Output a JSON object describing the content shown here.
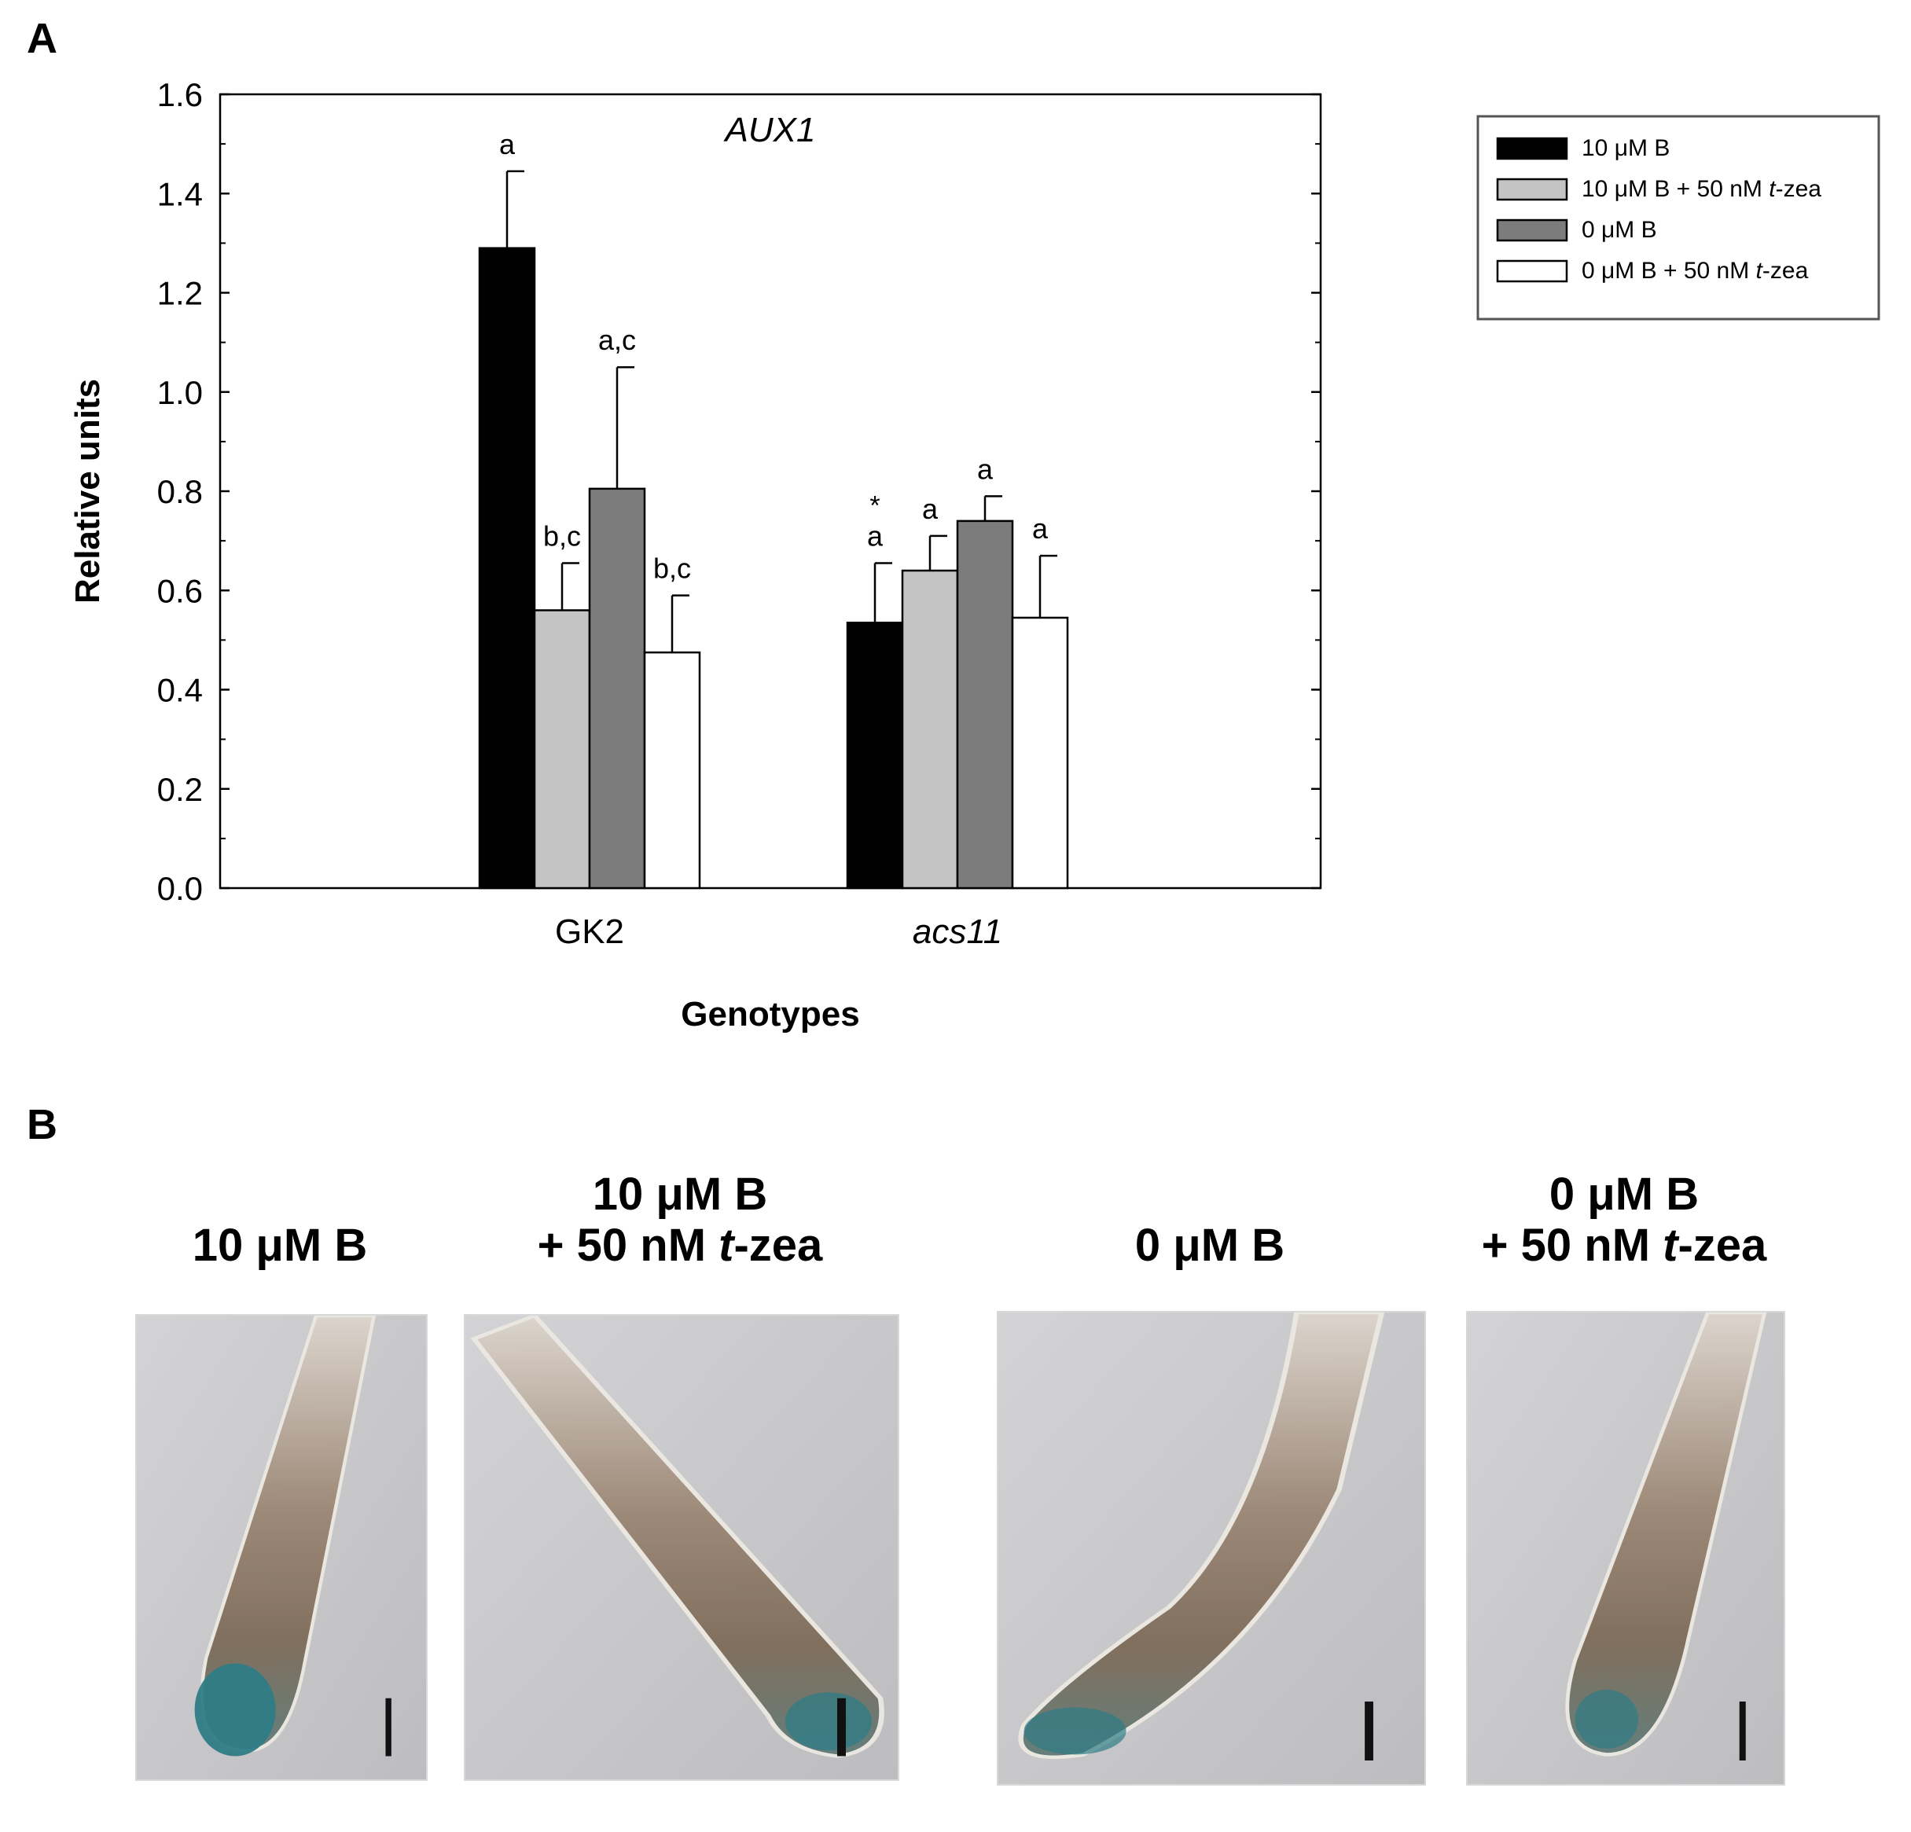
{
  "panel_a_label": "A",
  "panel_b_label": "B",
  "chart_data": {
    "type": "bar",
    "title": "AUX1",
    "xlabel": "Genotypes",
    "ylabel": "Relative units",
    "ylim": [
      0,
      1.6
    ],
    "yticks": [
      "0.0",
      "0.2",
      "0.4",
      "0.6",
      "0.8",
      "1.0",
      "1.2",
      "1.4",
      "1.6"
    ],
    "categories": [
      {
        "label": "GK2",
        "italic": false
      },
      {
        "label": "acs11",
        "italic": true
      }
    ],
    "series": [
      {
        "name": "10 μM B",
        "legend_parts": [
          "10 μM B"
        ],
        "color": "#000000",
        "values": [
          1.29,
          0.535
        ],
        "errors": [
          0.155,
          0.12
        ],
        "letters": [
          "a",
          "a"
        ],
        "stars": [
          "",
          "*"
        ]
      },
      {
        "name": "10 μM B + 50 nM t-zea",
        "legend_parts": [
          "10 μM B + 50 nM ",
          "t",
          "-zea"
        ],
        "color": "#c4c4c4",
        "values": [
          0.56,
          0.64
        ],
        "errors": [
          0.095,
          0.07
        ],
        "letters": [
          "b,c",
          "a"
        ],
        "stars": [
          "",
          ""
        ]
      },
      {
        "name": "0 μM B",
        "legend_parts": [
          "0 μM B"
        ],
        "color": "#7c7c7c",
        "values": [
          0.805,
          0.74
        ],
        "errors": [
          0.245,
          0.05
        ],
        "letters": [
          "a,c",
          "a"
        ],
        "stars": [
          "",
          ""
        ]
      },
      {
        "name": "0 μM B + 50 nM t-zea",
        "legend_parts": [
          "0 μM B + 50 nM ",
          "t",
          "-zea"
        ],
        "color": "#ffffff",
        "values": [
          0.475,
          0.545
        ],
        "errors": [
          0.115,
          0.125
        ],
        "letters": [
          "b,c",
          "a"
        ],
        "stars": [
          "",
          ""
        ]
      }
    ],
    "legend_position": "top-right"
  },
  "photo_panels": [
    {
      "title_line1": "",
      "title_line2_pre": "10 μM B",
      "title_line2_italic": "",
      "title_line2_post": "",
      "stain": "strong"
    },
    {
      "title_line1": "10 μM B",
      "title_line2_pre": "+ 50 nM ",
      "title_line2_italic": "t",
      "title_line2_post": "-zea",
      "stain": "moderate"
    },
    {
      "title_line1": "",
      "title_line2_pre": "0 μM B",
      "title_line2_italic": "",
      "title_line2_post": "",
      "stain": "weak"
    },
    {
      "title_line1": "0 μM B",
      "title_line2_pre": "+ 50 nM ",
      "title_line2_italic": "t",
      "title_line2_post": "-zea",
      "stain": "weak"
    }
  ]
}
